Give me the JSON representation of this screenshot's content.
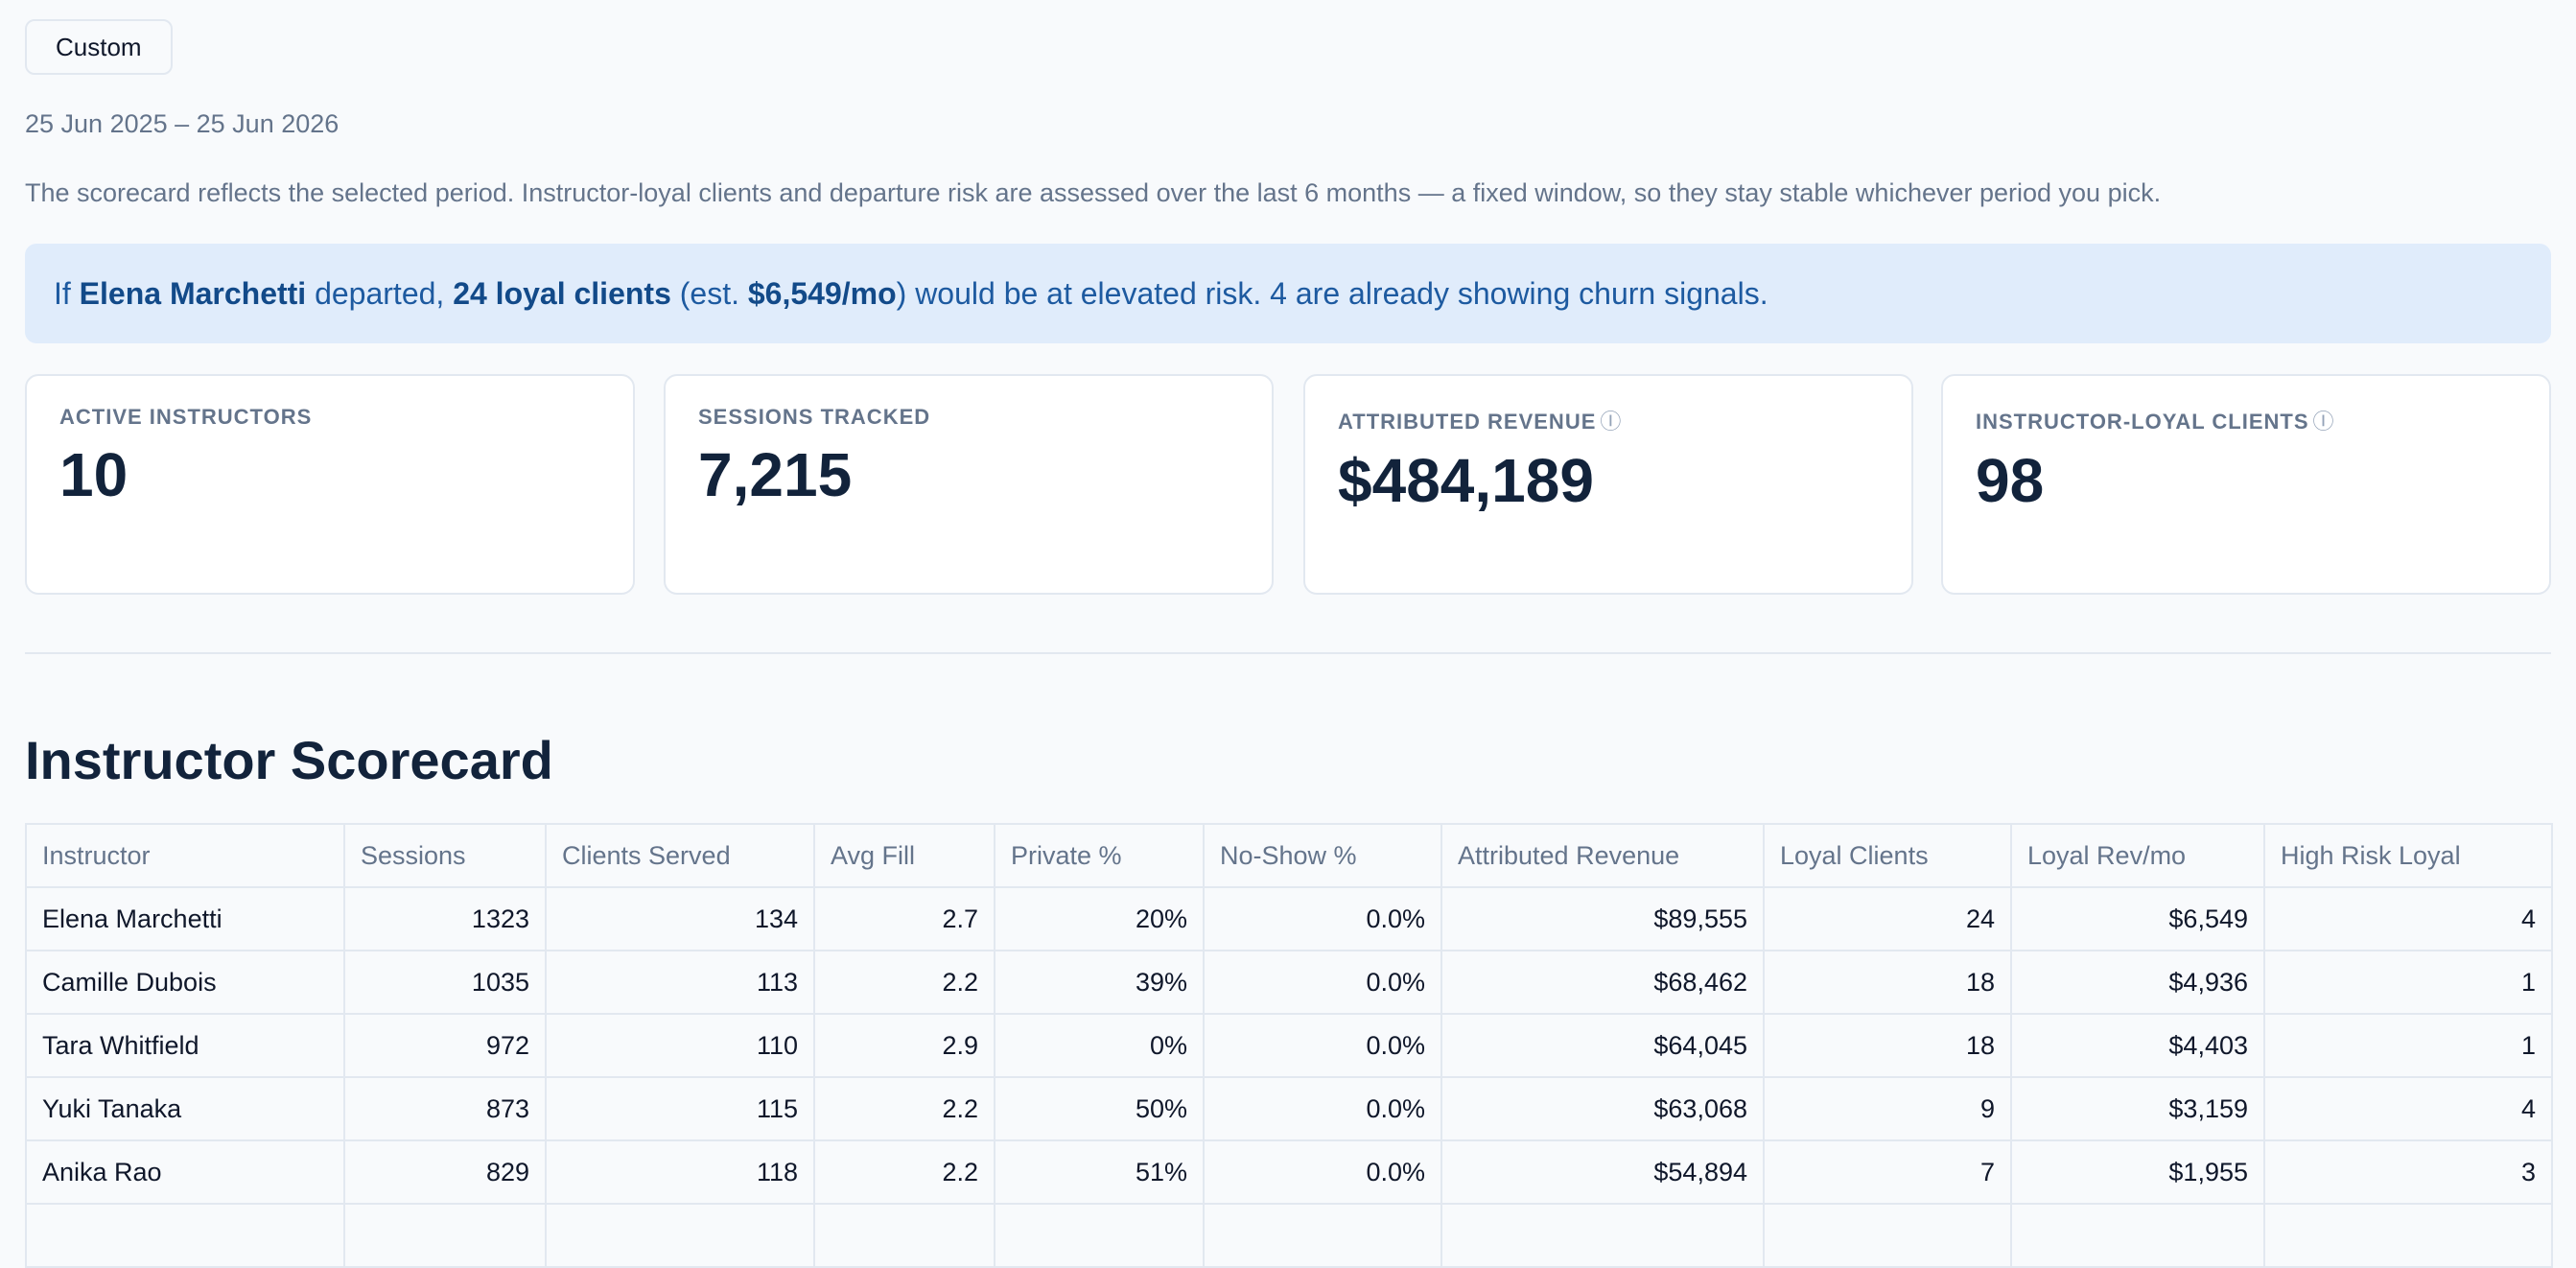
{
  "period": {
    "button_label": "Custom",
    "range": "25 Jun 2025 – 25 Jun 2026",
    "note": "The scorecard reflects the selected period. Instructor-loyal clients and departure risk are assessed over the last 6 months — a fixed window, so they stay stable whichever period you pick."
  },
  "alert": {
    "prefix": "If ",
    "instructor": "Elena Marchetti",
    "mid1": " departed, ",
    "loyal_clients": "24 loyal clients",
    "mid2": " (est. ",
    "monthly_revenue": "$6,549/mo",
    "suffix": ") would be at elevated risk. 4 are already showing churn signals."
  },
  "kpis": [
    {
      "label": "Active Instructors",
      "value": "10",
      "info": false
    },
    {
      "label": "Sessions Tracked",
      "value": "7,215",
      "info": false
    },
    {
      "label": "Attributed Revenue",
      "value": "$484,189",
      "info": true
    },
    {
      "label": "Instructor-Loyal Clients",
      "value": "98",
      "info": true
    }
  ],
  "icons": {
    "info": "info-circle-icon"
  },
  "colors": {
    "alert_bg": "#e0ecfb",
    "alert_text": "#1d5aa0"
  },
  "section_title": "Instructor Scorecard",
  "table": {
    "columns": [
      "Instructor",
      "Sessions",
      "Clients Served",
      "Avg Fill",
      "Private %",
      "No-Show %",
      "Attributed Revenue",
      "Loyal Clients",
      "Loyal Rev/mo",
      "High Risk Loyal"
    ],
    "rows": [
      [
        "Elena Marchetti",
        "1323",
        "134",
        "2.7",
        "20%",
        "0.0%",
        "$89,555",
        "24",
        "$6,549",
        "4"
      ],
      [
        "Camille Dubois",
        "1035",
        "113",
        "2.2",
        "39%",
        "0.0%",
        "$68,462",
        "18",
        "$4,936",
        "1"
      ],
      [
        "Tara Whitfield",
        "972",
        "110",
        "2.9",
        "0%",
        "0.0%",
        "$64,045",
        "18",
        "$4,403",
        "1"
      ],
      [
        "Yuki Tanaka",
        "873",
        "115",
        "2.2",
        "50%",
        "0.0%",
        "$63,068",
        "9",
        "$3,159",
        "4"
      ],
      [
        "Anika Rao",
        "829",
        "118",
        "2.2",
        "51%",
        "0.0%",
        "$54,894",
        "7",
        "$1,955",
        "3"
      ],
      [
        "",
        "",
        "",
        "",
        "",
        "",
        "",
        "",
        "",
        ""
      ]
    ]
  }
}
